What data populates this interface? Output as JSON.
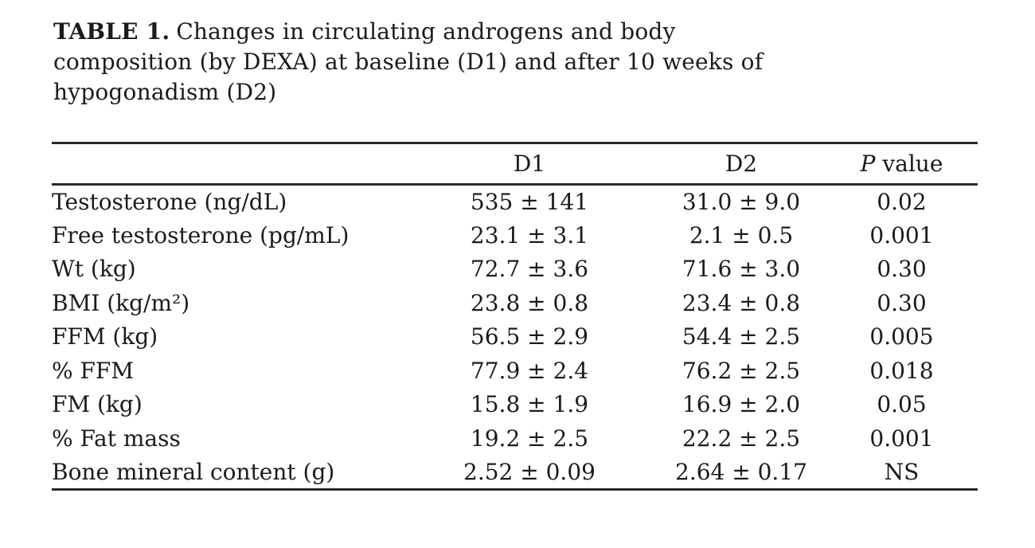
{
  "page": {
    "background_color": "#ffffff",
    "text_color": "#1b1b1b",
    "rule_color": "#2a2a2a"
  },
  "table": {
    "title": {
      "label": "TABLE 1.",
      "lines": [
        "Changes in circulating androgens and body",
        "composition (by DEXA) at baseline (D1) and after 10 weeks of",
        "hypogonadism (D2)"
      ],
      "full_text": "TABLE 1. Changes in circulating androgens and body composition (by DEXA) at baseline (D1) and after 10 weeks of hypogonadism (D2)"
    },
    "header": {
      "row_label": "",
      "d1": "D1",
      "d2": "D2",
      "p_italic": "P",
      "p_suffix": " value"
    },
    "rows": [
      {
        "label": "Testosterone (ng/dL)",
        "d1": "535 ± 141",
        "d2": "31.0 ± 9.0",
        "p": "0.02"
      },
      {
        "label": "Free testosterone (pg/mL)",
        "d1": "23.1 ± 3.1",
        "d2": "2.1 ± 0.5",
        "p": "0.001"
      },
      {
        "label": "Wt (kg)",
        "d1": "72.7 ± 3.6",
        "d2": "71.6 ± 3.0",
        "p": "0.30"
      },
      {
        "label": "BMI (kg/m²)",
        "d1": "23.8 ± 0.8",
        "d2": "23.4 ± 0.8",
        "p": "0.30"
      },
      {
        "label": "FFM (kg)",
        "d1": "56.5 ± 2.9",
        "d2": "54.4 ± 2.5",
        "p": "0.005"
      },
      {
        "label": "% FFM",
        "d1": "77.9 ± 2.4",
        "d2": "76.2 ± 2.5",
        "p": "0.018"
      },
      {
        "label": "FM (kg)",
        "d1": "15.8 ± 1.9",
        "d2": "16.9 ± 2.0",
        "p": "0.05"
      },
      {
        "label": "% Fat mass",
        "d1": "19.2 ± 2.5",
        "d2": "22.2 ± 2.5",
        "p": "0.001"
      },
      {
        "label": "Bone mineral content (g)",
        "d1": "2.52 ± 0.09",
        "d2": "2.64 ± 0.17",
        "p": "NS"
      }
    ]
  }
}
